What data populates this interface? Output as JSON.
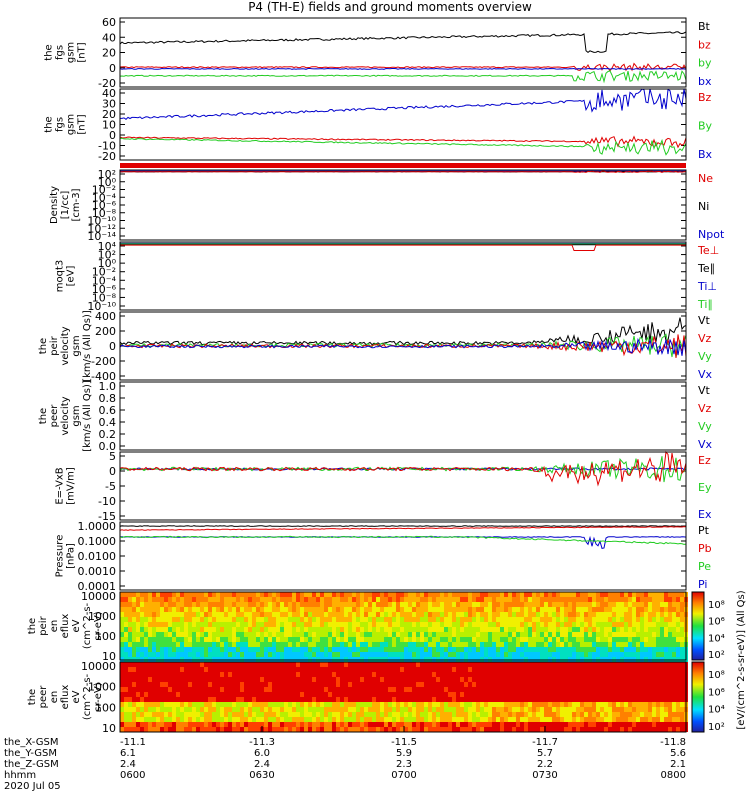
{
  "title": "P4 (TH-E) fields and ground moments overview",
  "colors": {
    "black": "#000000",
    "red": "#e00000",
    "green": "#22cc22",
    "blue": "#0000cc"
  },
  "chart_data": [
    {
      "type": "line",
      "ylabel": [
        "the",
        "fgs",
        "gsm",
        "[nT]"
      ],
      "yticks": [
        60,
        40,
        20,
        0,
        -20
      ],
      "ylim": [
        -20,
        60
      ],
      "legend": [
        {
          "name": "Bt",
          "color": "black"
        },
        {
          "name": "bz",
          "color": "red"
        },
        {
          "name": "by",
          "color": "green"
        },
        {
          "name": "bx",
          "color": "blue"
        }
      ]
    },
    {
      "type": "line",
      "ylabel": [
        "the",
        "fgs",
        "gsm",
        "[nT]"
      ],
      "yticks": [
        40,
        30,
        20,
        10,
        0,
        -10,
        -20
      ],
      "ylim": [
        -20,
        40
      ],
      "legend": [
        {
          "name": "Bz",
          "color": "red"
        },
        {
          "name": "By",
          "color": "green"
        },
        {
          "name": "Bx",
          "color": "blue"
        }
      ]
    },
    {
      "type": "line",
      "ylabel": [
        "Density",
        "[1/cc]",
        "[cm-3]"
      ],
      "yticks": [
        "10²",
        "10⁰",
        "10⁻²",
        "10⁻⁴",
        "10⁻⁶",
        "10⁻⁸",
        "10⁻¹⁰",
        "10⁻¹²",
        "10⁻¹⁴"
      ],
      "scale": "log",
      "legend": [
        {
          "name": "Ne",
          "color": "red"
        },
        {
          "name": "Ni",
          "color": "black"
        },
        {
          "name": "Npot",
          "color": "blue"
        }
      ]
    },
    {
      "type": "line",
      "ylabel": [
        "moqt3",
        "[eV]"
      ],
      "yticks": [
        "10⁴",
        "10²",
        "10⁰",
        "10⁻²",
        "10⁻⁴",
        "10⁻⁶",
        "10⁻⁸",
        "10⁻¹⁰"
      ],
      "scale": "log",
      "legend": [
        {
          "name": "Te⊥",
          "color": "red"
        },
        {
          "name": "Te∥",
          "color": "black"
        },
        {
          "name": "Ti⊥",
          "color": "blue"
        },
        {
          "name": "Ti∥",
          "color": "green"
        }
      ]
    },
    {
      "type": "line",
      "ylabel": [
        "the",
        "peir",
        "velocity",
        "gsm",
        "[km/s (All Qs)]"
      ],
      "yticks": [
        400,
        200,
        0,
        -200,
        -400
      ],
      "ylim": [
        -400,
        400
      ],
      "legend": [
        {
          "name": "Vt",
          "color": "black"
        },
        {
          "name": "Vz",
          "color": "red"
        },
        {
          "name": "Vy",
          "color": "green"
        },
        {
          "name": "Vx",
          "color": "blue"
        }
      ]
    },
    {
      "type": "line",
      "ylabel": [
        "the",
        "peer",
        "velocity",
        "gsm",
        "[km/s (All Qs)]"
      ],
      "yticks": [
        "1.0",
        "0.8",
        "0.6",
        "0.4",
        "0.2",
        "0.0"
      ],
      "ylim": [
        0,
        1
      ],
      "legend": [
        {
          "name": "Vt",
          "color": "black"
        },
        {
          "name": "Vz",
          "color": "red"
        },
        {
          "name": "Vy",
          "color": "green"
        },
        {
          "name": "Vx",
          "color": "blue"
        }
      ]
    },
    {
      "type": "line",
      "ylabel": [
        "E=-VxB",
        "[mV/m]"
      ],
      "yticks": [
        5,
        0,
        -5,
        -10,
        -15
      ],
      "ylim": [
        -15,
        5
      ],
      "legend": [
        {
          "name": "Ez",
          "color": "red"
        },
        {
          "name": "Ey",
          "color": "green"
        },
        {
          "name": "Ex",
          "color": "blue"
        }
      ]
    },
    {
      "type": "line",
      "ylabel": [
        "Pressure",
        "[nPa]"
      ],
      "yticks": [
        "1.0000",
        "0.1000",
        "0.0100",
        "0.0010",
        "0.0001"
      ],
      "scale": "log",
      "legend": [
        {
          "name": "Pt",
          "color": "black"
        },
        {
          "name": "Pb",
          "color": "red"
        },
        {
          "name": "Pe",
          "color": "green"
        },
        {
          "name": "Pi",
          "color": "blue"
        }
      ]
    },
    {
      "type": "heatmap",
      "ylabel": [
        "the",
        "peir",
        "en",
        "eflux",
        "eV",
        "(cm^2-s-",
        "sr-eV)"
      ],
      "yticks": [
        "10000",
        "1000",
        "100",
        "10"
      ],
      "scale": "log",
      "colorbar_ticks": [
        "10⁸",
        "10⁶",
        "10⁴",
        "10²"
      ]
    },
    {
      "type": "heatmap",
      "ylabel": [
        "the",
        "peer",
        "en",
        "eflux",
        "eV",
        "(cm^2-s-",
        "sr-eV)"
      ],
      "yticks": [
        "10000",
        "1000",
        "100",
        "10"
      ],
      "scale": "log",
      "colorbar_ticks": [
        "10⁸",
        "10⁶",
        "10⁴",
        "10²"
      ]
    }
  ],
  "colorbar_label": "[eV/(cm^2-s-sr-eV)] (All Qs)",
  "xaxis": {
    "rows": [
      {
        "label": "the_X-GSM",
        "values": [
          "-11.1",
          "-11.3",
          "-11.5",
          "-11.7",
          "-11.8"
        ]
      },
      {
        "label": "the_Y-GSM",
        "values": [
          "6.1",
          "6.0",
          "5.9",
          "5.7",
          "5.6"
        ]
      },
      {
        "label": "the_Z-GSM",
        "values": [
          "2.4",
          "2.4",
          "2.3",
          "2.2",
          "2.1"
        ]
      },
      {
        "label": "hhmm",
        "values": [
          "0600",
          "0630",
          "0700",
          "0730",
          "0800"
        ]
      }
    ],
    "date": "2020 Jul 05"
  }
}
